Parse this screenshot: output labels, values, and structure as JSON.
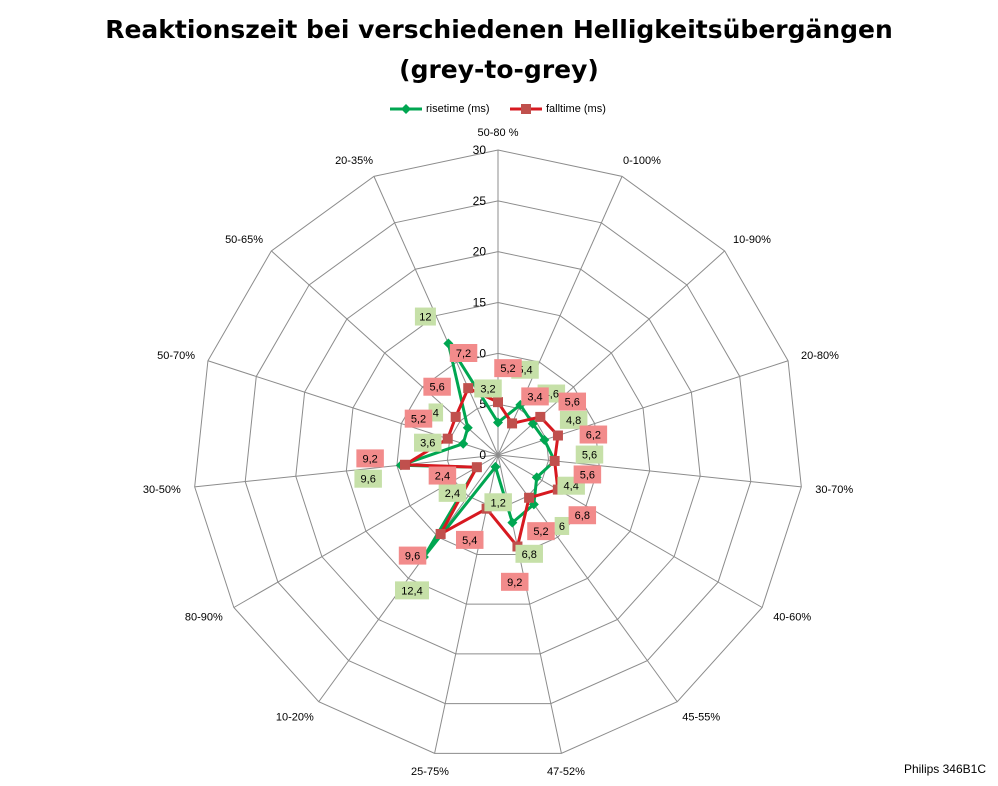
{
  "title_line1": "Reaktionszeit bei verschiedenen Helligkeitsübergängen",
  "title_line2": "(grey-to-grey)",
  "footer_text": "Philips 346B1C",
  "chart_data": {
    "type": "radar",
    "title": "Reaktionszeit bei verschiedenen Helligkeitsübergängen (grey-to-grey)",
    "categories": [
      "50-80 %",
      "0-100%",
      "10-90%",
      "20-80%",
      "30-70%",
      "40-60%",
      "45-55%",
      "47-52%",
      "25-75%",
      "10-20%",
      "80-90%",
      "30-50%",
      "50-70%",
      "50-65%",
      "20-35%"
    ],
    "radial_ticks": [
      "0",
      "5",
      "10",
      "15",
      "20",
      "25",
      "30"
    ],
    "rlim": [
      0,
      30
    ],
    "legend_position": "top",
    "series": [
      {
        "name": "risetime (ms)",
        "color": "#00a651",
        "marker": "diamond",
        "label_bg": "#c6e0a8",
        "values": [
          3.2,
          5.4,
          4.6,
          4.8,
          5.6,
          4.4,
          6,
          6.8,
          1.2,
          12.4,
          2.4,
          9.6,
          3.6,
          4,
          12
        ],
        "labels": [
          "3,2",
          "5,4",
          "4,6",
          "4,8",
          "5,6",
          "4,4",
          "6",
          "6,8",
          "1,2",
          "12,4",
          "2,4",
          "9,6",
          "3,6",
          "4",
          "12"
        ]
      },
      {
        "name": "falltime (ms)",
        "color": "#d71920",
        "marker": "square",
        "label_bg": "#f28b8b",
        "values": [
          5.2,
          3.4,
          5.6,
          6.2,
          5.6,
          6.8,
          5.2,
          9.2,
          5.4,
          9.6,
          2.4,
          9.2,
          5.2,
          5.6,
          7.2
        ],
        "labels": [
          "5,2",
          "3,4",
          "5,6",
          "6,2",
          "5,6",
          "6,8",
          "5,2",
          "9,2",
          "5,4",
          "9,6",
          "2,4",
          "9,2",
          "5,2",
          "5,6",
          "7,2"
        ]
      }
    ]
  }
}
